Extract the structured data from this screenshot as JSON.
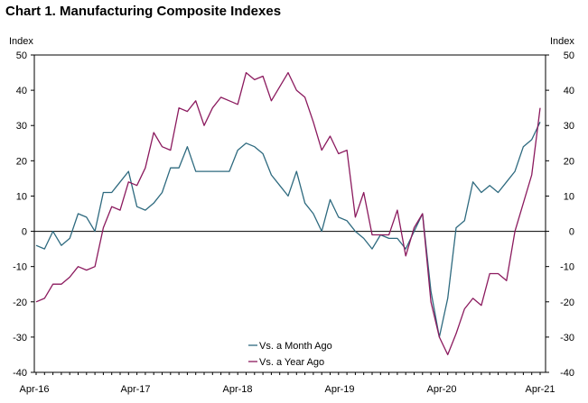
{
  "chart_data": {
    "type": "line",
    "title": "Chart 1. Manufacturing Composite Indexes",
    "ylabel_left": "Index",
    "ylabel_right": "Index",
    "ylim": [
      -40,
      50
    ],
    "yticks": [
      -40,
      -30,
      -20,
      -10,
      0,
      10,
      20,
      30,
      40,
      50
    ],
    "x_start": "Apr-16",
    "x_labels": [
      "Apr-16",
      "Apr-17",
      "Apr-18",
      "Apr-19",
      "Apr-20",
      "Apr-21"
    ],
    "legend_position": "bottom-center",
    "grid": false,
    "series": [
      {
        "name": "Vs. a Month Ago",
        "color": "#2e6a7f",
        "values": [
          -4,
          -5,
          0,
          -4,
          -2,
          5,
          4,
          0,
          11,
          11,
          14,
          17,
          7,
          6,
          8,
          11,
          18,
          18,
          24,
          17,
          17,
          17,
          17,
          17,
          23,
          25,
          24,
          22,
          16,
          13,
          10,
          17,
          8,
          5,
          0,
          9,
          4,
          3,
          0,
          -2,
          -5,
          -1,
          -2,
          -2,
          -5,
          0,
          5,
          -17,
          -30,
          -19,
          1,
          3,
          14,
          11,
          13,
          11,
          14,
          17,
          24,
          26,
          31
        ]
      },
      {
        "name": "Vs. a Year Ago",
        "color": "#8b1a5e",
        "values": [
          -20,
          -19,
          -15,
          -15,
          -13,
          -10,
          -11,
          -10,
          1,
          7,
          6,
          14,
          13,
          18,
          28,
          24,
          23,
          35,
          34,
          37,
          30,
          35,
          38,
          37,
          36,
          45,
          43,
          44,
          37,
          41,
          45,
          40,
          38,
          31,
          23,
          27,
          22,
          23,
          4,
          11,
          -1,
          -1,
          -1,
          6,
          -7,
          1,
          5,
          -20,
          -30,
          -35,
          -29,
          -22,
          -19,
          -21,
          -12,
          -12,
          -14,
          0,
          8,
          16,
          35
        ]
      }
    ]
  }
}
